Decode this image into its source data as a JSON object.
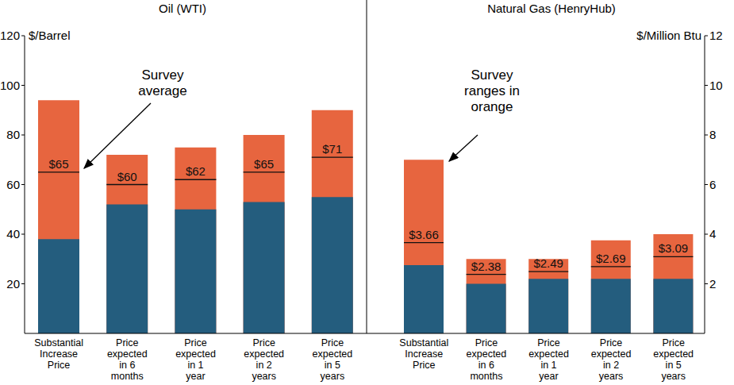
{
  "chart_data": [
    {
      "type": "bar",
      "title": "Oil (WTI)",
      "ylabel": "$/Barrel",
      "categories": [
        "Substantial Increase Price",
        "Price expected in 6 months",
        "Price expected in 1 year",
        "Price expected in 2 years",
        "Price expected in 5 years"
      ],
      "series": [
        {
          "color": "#245d7e",
          "values": [
            38,
            52,
            50,
            53,
            55
          ]
        },
        {
          "color": "#e7653f",
          "values": [
            94,
            72,
            75,
            80,
            90
          ]
        }
      ],
      "average": [
        65,
        60,
        62,
        65,
        71
      ],
      "value_labels": [
        "$65",
        "$60",
        "$62",
        "$65",
        "$71"
      ],
      "data_labels": true,
      "annotation": "Survey average",
      "ylim": [
        0,
        120
      ],
      "yticks": [
        20,
        40,
        60,
        80,
        100,
        120
      ]
    },
    {
      "type": "bar",
      "title": "Natural Gas (HenryHub)",
      "ylabel": "$/Million Btu",
      "categories": [
        "Substantial Increase Price",
        "Price expected in 6 months",
        "Price expected in 1 year",
        "Price expected in 2 years",
        "Price expected in 5 years"
      ],
      "series": [
        {
          "color": "#245d7e",
          "values": [
            2.75,
            2.0,
            2.2,
            2.2,
            2.2
          ]
        },
        {
          "color": "#e7653f",
          "values": [
            7.0,
            3.0,
            3.0,
            3.75,
            4.0
          ]
        }
      ],
      "average": [
        3.66,
        2.38,
        2.49,
        2.69,
        3.09
      ],
      "value_labels": [
        "$3.66",
        "$2.38",
        "$2.49",
        "$2.69",
        "$3.09"
      ],
      "data_labels": true,
      "annotation": "Survey ranges in orange",
      "ylim": [
        0,
        12
      ],
      "yticks": [
        2,
        4,
        6,
        8,
        10,
        12
      ]
    }
  ]
}
